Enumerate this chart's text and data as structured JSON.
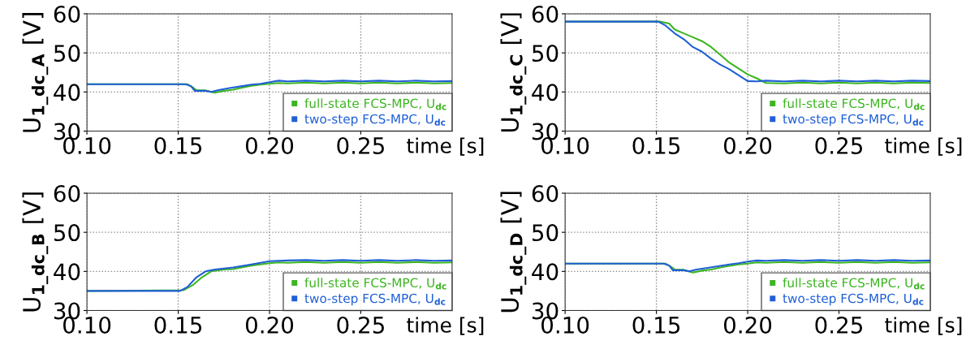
{
  "chart_data": [
    {
      "type": "line",
      "ylabel": "U$_{1_dc_A}$ [V]",
      "xlabel": "time [s]",
      "xlim": [
        0.1,
        0.3
      ],
      "ylim": [
        30,
        60
      ],
      "xticks": [
        {
          "value": 0.1,
          "label": "0.10"
        },
        {
          "value": 0.15,
          "label": "0.15"
        },
        {
          "value": 0.2,
          "label": "0.20"
        },
        {
          "value": 0.25,
          "label": "0.25"
        }
      ],
      "yticks": [
        30,
        40,
        50,
        60
      ],
      "grid": true,
      "legend": "bottom right",
      "series": [
        {
          "name": "full-state FCS-MPC, U$_{dc}$",
          "color": "#3cb521",
          "x": [
            0.1,
            0.155,
            0.158,
            0.16,
            0.165,
            0.17,
            0.175,
            0.18,
            0.185,
            0.19,
            0.195,
            0.2,
            0.205,
            0.21,
            0.22,
            0.23,
            0.24,
            0.25,
            0.26,
            0.27,
            0.28,
            0.29,
            0.3
          ],
          "values": [
            42,
            42,
            41.2,
            40.4,
            40.4,
            39.8,
            40.3,
            40.6,
            41.1,
            41.6,
            41.9,
            42.1,
            42.3,
            42.2,
            42.4,
            42.2,
            42.4,
            42.2,
            42.4,
            42.2,
            42.4,
            42.2,
            42.3
          ]
        },
        {
          "name": "two-step FCS-MPC, U$_{dc}$",
          "color": "#1f5fd6",
          "x": [
            0.1,
            0.154,
            0.157,
            0.159,
            0.165,
            0.168,
            0.172,
            0.178,
            0.185,
            0.19,
            0.195,
            0.2,
            0.205,
            0.21,
            0.22,
            0.23,
            0.24,
            0.25,
            0.26,
            0.27,
            0.28,
            0.29,
            0.3
          ],
          "values": [
            42,
            42,
            41.5,
            40.3,
            40.3,
            40.0,
            40.5,
            41.0,
            41.5,
            41.9,
            42.1,
            42.5,
            42.9,
            42.7,
            42.9,
            42.7,
            42.9,
            42.7,
            42.9,
            42.7,
            42.9,
            42.7,
            42.8
          ]
        }
      ]
    },
    {
      "type": "line",
      "ylabel": "U$_{1_dc_C}$ [V]",
      "xlabel": "time [s]",
      "xlim": [
        0.1,
        0.3
      ],
      "ylim": [
        30,
        60
      ],
      "xticks": [
        {
          "value": 0.1,
          "label": "0.10"
        },
        {
          "value": 0.15,
          "label": "0.15"
        },
        {
          "value": 0.2,
          "label": "0.20"
        },
        {
          "value": 0.25,
          "label": "0.25"
        }
      ],
      "yticks": [
        30,
        40,
        50,
        60
      ],
      "grid": true,
      "legend": "bottom right",
      "series": [
        {
          "name": "full-state FCS-MPC, U$_{dc}$",
          "color": "#3cb521",
          "x": [
            0.1,
            0.152,
            0.157,
            0.16,
            0.165,
            0.17,
            0.175,
            0.18,
            0.185,
            0.19,
            0.195,
            0.2,
            0.205,
            0.21,
            0.22,
            0.23,
            0.24,
            0.25,
            0.26,
            0.27,
            0.28,
            0.29,
            0.3
          ],
          "values": [
            58,
            58,
            57.5,
            56,
            55,
            54,
            53,
            51.5,
            49.5,
            47.5,
            46,
            44.5,
            43.5,
            42.3,
            42.2,
            42.4,
            42.2,
            42.4,
            42.2,
            42.4,
            42.2,
            42.4,
            42.3
          ]
        },
        {
          "name": "two-step FCS-MPC, U$_{dc}$",
          "color": "#1f5fd6",
          "x": [
            0.1,
            0.151,
            0.155,
            0.16,
            0.165,
            0.17,
            0.175,
            0.18,
            0.185,
            0.19,
            0.195,
            0.2,
            0.205,
            0.21,
            0.22,
            0.23,
            0.24,
            0.25,
            0.26,
            0.27,
            0.28,
            0.29,
            0.3
          ],
          "values": [
            58,
            58,
            57,
            55,
            53.5,
            51.5,
            50.3,
            48.5,
            47,
            45.8,
            44.3,
            42.8,
            42.7,
            42.9,
            42.7,
            42.9,
            42.7,
            42.9,
            42.7,
            42.9,
            42.7,
            42.9,
            42.8
          ]
        }
      ]
    },
    {
      "type": "line",
      "ylabel": "U$_{1_dc_B}$ [V]",
      "xlabel": "time [s]",
      "xlim": [
        0.1,
        0.3
      ],
      "ylim": [
        30,
        60
      ],
      "xticks": [
        {
          "value": 0.1,
          "label": "0.10"
        },
        {
          "value": 0.15,
          "label": "0.15"
        },
        {
          "value": 0.2,
          "label": "0.20"
        },
        {
          "value": 0.25,
          "label": "0.25"
        }
      ],
      "yticks": [
        30,
        40,
        50,
        60
      ],
      "grid": true,
      "legend": "bottom right",
      "series": [
        {
          "name": "full-state FCS-MPC, U$_{dc}$",
          "color": "#3cb521",
          "x": [
            0.1,
            0.153,
            0.158,
            0.163,
            0.168,
            0.175,
            0.18,
            0.19,
            0.2,
            0.205,
            0.21,
            0.22,
            0.23,
            0.24,
            0.25,
            0.26,
            0.27,
            0.28,
            0.29,
            0.3
          ],
          "values": [
            35,
            35.2,
            36.5,
            38.5,
            40,
            40.5,
            40.6,
            41.5,
            42.1,
            42.3,
            42.2,
            42.4,
            42.2,
            42.4,
            42.2,
            42.4,
            42.2,
            42.4,
            42.2,
            42.3
          ]
        },
        {
          "name": "two-step FCS-MPC, U$_{dc}$",
          "color": "#1f5fd6",
          "x": [
            0.1,
            0.151,
            0.155,
            0.16,
            0.165,
            0.17,
            0.18,
            0.19,
            0.2,
            0.21,
            0.22,
            0.23,
            0.24,
            0.25,
            0.26,
            0.27,
            0.28,
            0.29,
            0.3
          ],
          "values": [
            35,
            35,
            36,
            38.5,
            40,
            40.5,
            41,
            41.8,
            42.6,
            42.8,
            42.9,
            42.7,
            42.9,
            42.7,
            42.9,
            42.7,
            42.9,
            42.7,
            42.8
          ]
        }
      ]
    },
    {
      "type": "line",
      "ylabel": "U$_{1_dc_D}$ [V]",
      "xlabel": "time [s]",
      "xlim": [
        0.1,
        0.3
      ],
      "ylim": [
        30,
        60
      ],
      "xticks": [
        {
          "value": 0.1,
          "label": "0.10"
        },
        {
          "value": 0.15,
          "label": "0.15"
        },
        {
          "value": 0.2,
          "label": "0.20"
        },
        {
          "value": 0.25,
          "label": "0.25"
        }
      ],
      "yticks": [
        30,
        40,
        50,
        60
      ],
      "grid": true,
      "legend": "bottom right",
      "series": [
        {
          "name": "full-state FCS-MPC, U$_{dc}$",
          "color": "#3cb521",
          "x": [
            0.1,
            0.155,
            0.158,
            0.16,
            0.165,
            0.17,
            0.175,
            0.18,
            0.185,
            0.19,
            0.195,
            0.2,
            0.205,
            0.21,
            0.22,
            0.23,
            0.24,
            0.25,
            0.26,
            0.27,
            0.28,
            0.29,
            0.3
          ],
          "values": [
            42,
            42,
            41.2,
            40.5,
            40.4,
            39.7,
            40.2,
            40.5,
            41,
            41.4,
            41.8,
            42.0,
            42.3,
            42.2,
            42.4,
            42.2,
            42.4,
            42.2,
            42.4,
            42.2,
            42.4,
            42.2,
            42.3
          ]
        },
        {
          "name": "two-step FCS-MPC, U$_{dc}$",
          "color": "#1f5fd6",
          "x": [
            0.1,
            0.154,
            0.157,
            0.159,
            0.165,
            0.168,
            0.172,
            0.178,
            0.185,
            0.19,
            0.195,
            0.2,
            0.205,
            0.21,
            0.22,
            0.23,
            0.24,
            0.25,
            0.26,
            0.27,
            0.28,
            0.29,
            0.3
          ],
          "values": [
            42,
            42,
            41.5,
            40.3,
            40.3,
            40.0,
            40.5,
            40.9,
            41.4,
            41.8,
            42.1,
            42.5,
            42.8,
            42.7,
            42.9,
            42.7,
            42.9,
            42.7,
            42.9,
            42.7,
            42.9,
            42.7,
            42.8
          ]
        }
      ]
    }
  ]
}
